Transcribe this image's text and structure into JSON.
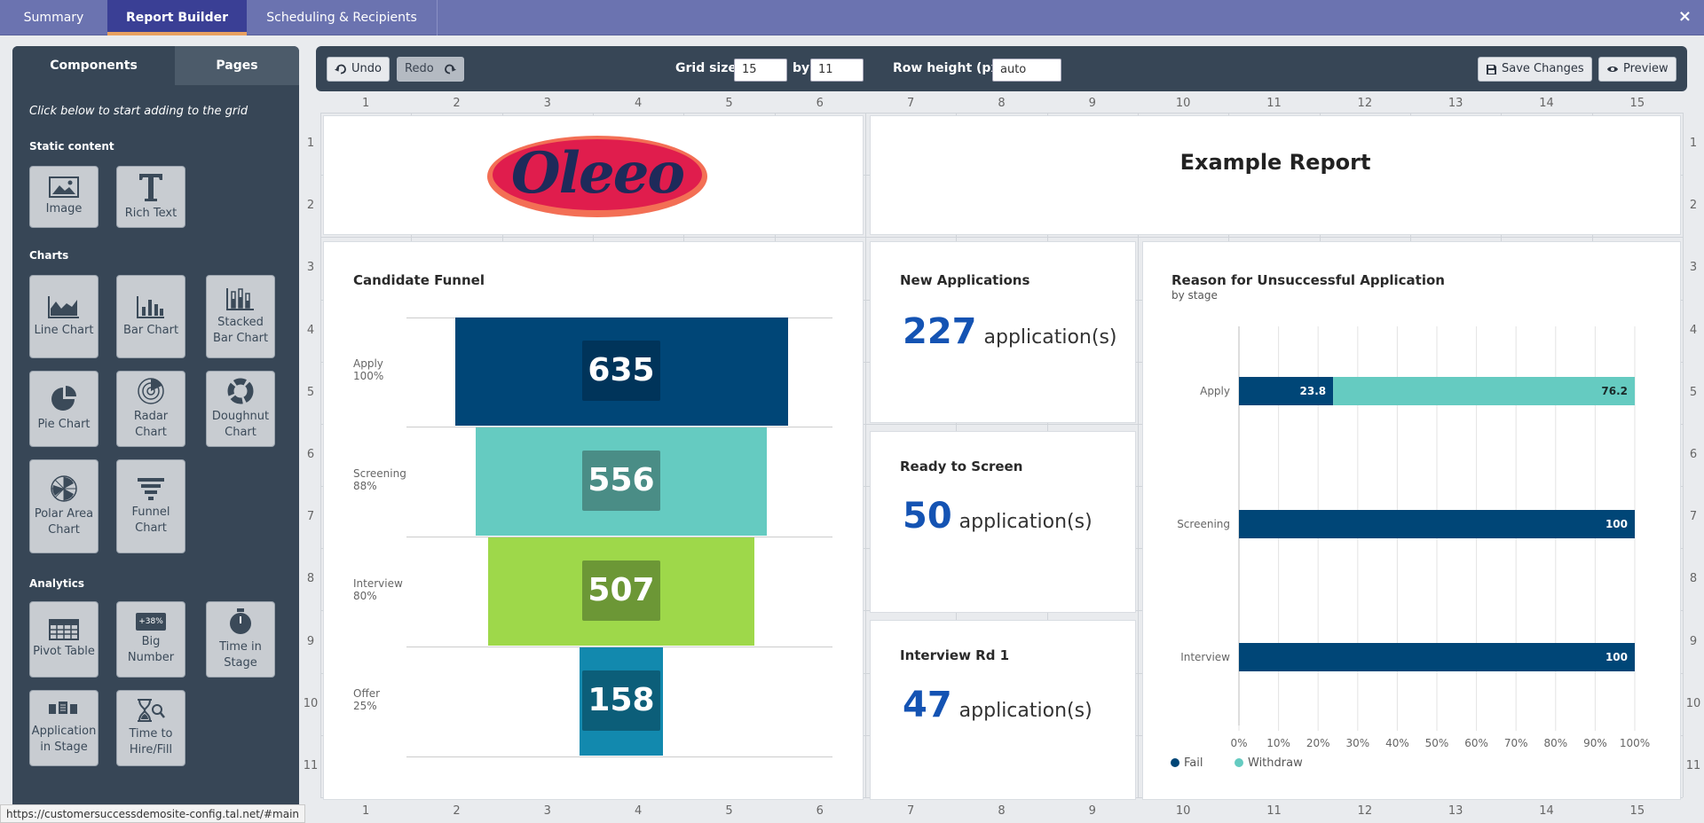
{
  "tabs": [
    {
      "label": "Summary"
    },
    {
      "label": "Report Builder"
    },
    {
      "label": "Scheduling & Recipients"
    }
  ],
  "close_label": "×",
  "sidebar": {
    "tab_components": "Components",
    "tab_pages": "Pages",
    "hint": "Click below to start adding to the grid",
    "section_static": "Static content",
    "section_charts": "Charts",
    "section_analytics": "Analytics",
    "static_items": [
      {
        "label": "Image",
        "icon": "image-icon"
      },
      {
        "label": "Rich Text",
        "icon": "text-icon"
      }
    ],
    "chart_items": [
      {
        "label": "Line Chart"
      },
      {
        "label": "Bar Chart"
      },
      {
        "label": "Stacked Bar Chart"
      },
      {
        "label": "Pie Chart"
      },
      {
        "label": "Radar Chart"
      },
      {
        "label": "Doughnut Chart"
      },
      {
        "label": "Polar Area Chart"
      },
      {
        "label": "Funnel Chart"
      }
    ],
    "analytics_items": [
      {
        "label": "Pivot Table"
      },
      {
        "label": "Big Number",
        "badge": "+38%"
      },
      {
        "label": "Time in Stage"
      },
      {
        "label": "Application in Stage"
      },
      {
        "label": "Time to Hire/Fill"
      }
    ]
  },
  "toolbar": {
    "undo": "Undo",
    "redo": "Redo",
    "grid_size_label": "Grid size:",
    "grid_cols": "15",
    "by_label": "by",
    "grid_rows": "11",
    "row_height_label": "Row height (px)",
    "row_height": "auto",
    "save": "Save Changes",
    "preview": "Preview"
  },
  "grid": {
    "columns": [
      "1",
      "2",
      "3",
      "4",
      "5",
      "6",
      "7",
      "8",
      "9",
      "10",
      "11",
      "12",
      "13",
      "14",
      "15"
    ],
    "rows": [
      "1",
      "2",
      "3",
      "4",
      "5",
      "6",
      "7",
      "8",
      "9",
      "10",
      "11"
    ]
  },
  "logo_text": "Oleeo",
  "report_title": "Example Report",
  "funnel": {
    "title": "Candidate Funnel",
    "stages": [
      {
        "name": "Apply",
        "pct": "100%",
        "value": "635",
        "color": "#004677",
        "box": "#00345a"
      },
      {
        "name": "Screening",
        "pct": "88%",
        "value": "556",
        "color": "#65cbc1",
        "box": "#4a8d86"
      },
      {
        "name": "Interview",
        "pct": "80%",
        "value": "507",
        "color": "#9ed84a",
        "box": "#6c9736"
      },
      {
        "name": "Offer",
        "pct": "25%",
        "value": "158",
        "color": "#1289ae",
        "box": "#0c5e79"
      }
    ]
  },
  "big_numbers": [
    {
      "title": "New Applications",
      "value": "227",
      "unit": "application(s)"
    },
    {
      "title": "Ready to Screen",
      "value": "50",
      "unit": "application(s)"
    },
    {
      "title": "Interview Rd 1",
      "value": "47",
      "unit": "application(s)"
    }
  ],
  "chart_data": {
    "type": "bar",
    "title": "Reason for Unsuccessful Application",
    "subtitle": "by stage",
    "orientation": "horizontal",
    "stacked": true,
    "categories": [
      "Apply",
      "Screening",
      "Interview"
    ],
    "series": [
      {
        "name": "Fail",
        "values": [
          23.8,
          100,
          100
        ],
        "color": "#004677"
      },
      {
        "name": "Withdraw",
        "values": [
          76.2,
          0,
          0
        ],
        "color": "#65cbc1"
      }
    ],
    "x_ticks": [
      "0%",
      "10%",
      "20%",
      "30%",
      "40%",
      "50%",
      "60%",
      "70%",
      "80%",
      "90%",
      "100%"
    ],
    "xlim": [
      0,
      100
    ],
    "grid": true,
    "legend_position": "bottom-left"
  },
  "status_url": "https://customersuccessdemosite-config.tal.net/#main"
}
